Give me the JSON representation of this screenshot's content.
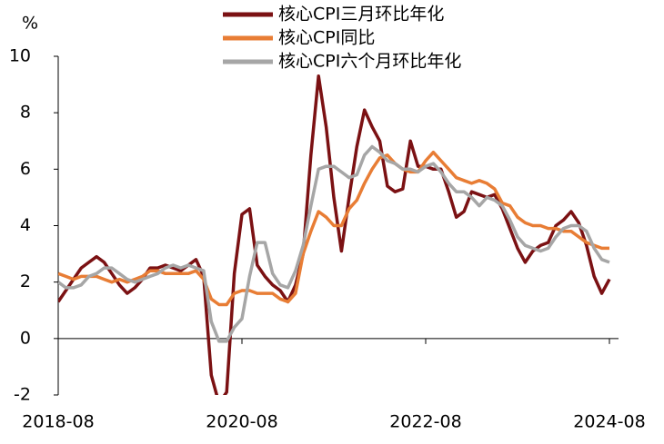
{
  "chart_data": {
    "type": "line",
    "y_label": "%",
    "categories": [
      "2018-08",
      null,
      null,
      null,
      null,
      null,
      null,
      null,
      null,
      null,
      null,
      null,
      null,
      null,
      null,
      null,
      null,
      null,
      null,
      null,
      null,
      null,
      null,
      null,
      "2020-08",
      null,
      null,
      null,
      null,
      null,
      null,
      null,
      null,
      null,
      null,
      null,
      null,
      null,
      null,
      null,
      null,
      null,
      null,
      null,
      null,
      null,
      null,
      null,
      "2022-08",
      null,
      null,
      null,
      null,
      null,
      null,
      null,
      null,
      null,
      null,
      null,
      null,
      null,
      null,
      null,
      null,
      null,
      null,
      null,
      null,
      null,
      null,
      null,
      "2024-08"
    ],
    "series": [
      {
        "name": "核心CPI三月环比年化",
        "color": "#7b1113",
        "values": [
          1.3,
          1.7,
          2.1,
          2.5,
          2.7,
          2.9,
          2.7,
          2.3,
          1.9,
          1.6,
          1.8,
          2.1,
          2.5,
          2.5,
          2.6,
          2.5,
          2.4,
          2.6,
          2.8,
          2.2,
          -1.3,
          -2.3,
          -1.9,
          2.3,
          4.4,
          4.6,
          2.6,
          2.2,
          1.9,
          1.7,
          1.3,
          1.9,
          3.0,
          6.5,
          9.3,
          7.5,
          5.0,
          3.1,
          5.0,
          6.8,
          8.1,
          7.5,
          7.0,
          5.4,
          5.2,
          5.3,
          7.0,
          6.1,
          6.1,
          6.0,
          6.0,
          5.2,
          4.3,
          4.5,
          5.2,
          5.1,
          5.0,
          5.1,
          4.6,
          3.9,
          3.2,
          2.7,
          3.1,
          3.3,
          3.4,
          4.0,
          4.2,
          4.5,
          4.1,
          3.3,
          2.2,
          1.6,
          2.1
        ]
      },
      {
        "name": "核心CPI同比",
        "color": "#e87d35",
        "values": [
          2.3,
          2.2,
          2.1,
          2.2,
          2.2,
          2.2,
          2.1,
          2.0,
          2.1,
          2.0,
          2.1,
          2.2,
          2.4,
          2.4,
          2.3,
          2.3,
          2.3,
          2.3,
          2.4,
          2.1,
          1.4,
          1.2,
          1.2,
          1.6,
          1.7,
          1.7,
          1.6,
          1.6,
          1.6,
          1.4,
          1.3,
          1.6,
          3.0,
          3.8,
          4.5,
          4.3,
          4.0,
          4.0,
          4.6,
          4.9,
          5.5,
          6.0,
          6.4,
          6.5,
          6.2,
          6.0,
          5.9,
          5.9,
          6.3,
          6.6,
          6.3,
          6.0,
          5.7,
          5.6,
          5.5,
          5.6,
          5.5,
          5.3,
          4.8,
          4.7,
          4.3,
          4.1,
          4.0,
          4.0,
          3.9,
          3.9,
          3.8,
          3.8,
          3.6,
          3.4,
          3.3,
          3.2,
          3.2
        ]
      },
      {
        "name": "核心CPI六个月环比年化",
        "color": "#a6a6a6",
        "values": [
          2.0,
          1.8,
          1.8,
          1.9,
          2.2,
          2.3,
          2.5,
          2.5,
          2.3,
          2.1,
          2.0,
          2.1,
          2.2,
          2.3,
          2.5,
          2.6,
          2.5,
          2.6,
          2.5,
          2.4,
          0.6,
          -0.1,
          -0.1,
          0.4,
          0.7,
          2.2,
          3.4,
          3.4,
          2.3,
          1.9,
          1.8,
          2.4,
          3.3,
          4.7,
          6.0,
          6.1,
          6.1,
          5.9,
          5.7,
          5.8,
          6.5,
          6.8,
          6.6,
          6.3,
          6.2,
          6.0,
          6.0,
          5.9,
          6.1,
          6.2,
          5.9,
          5.5,
          5.2,
          5.2,
          5.0,
          4.7,
          5.0,
          4.9,
          4.7,
          4.2,
          3.6,
          3.3,
          3.2,
          3.1,
          3.2,
          3.6,
          3.9,
          4.0,
          4.0,
          3.8,
          3.2,
          2.8,
          2.7
        ]
      }
    ],
    "ylim": [
      -2,
      10
    ],
    "yticks": [
      -2,
      0,
      2,
      4,
      6,
      8,
      10
    ]
  }
}
